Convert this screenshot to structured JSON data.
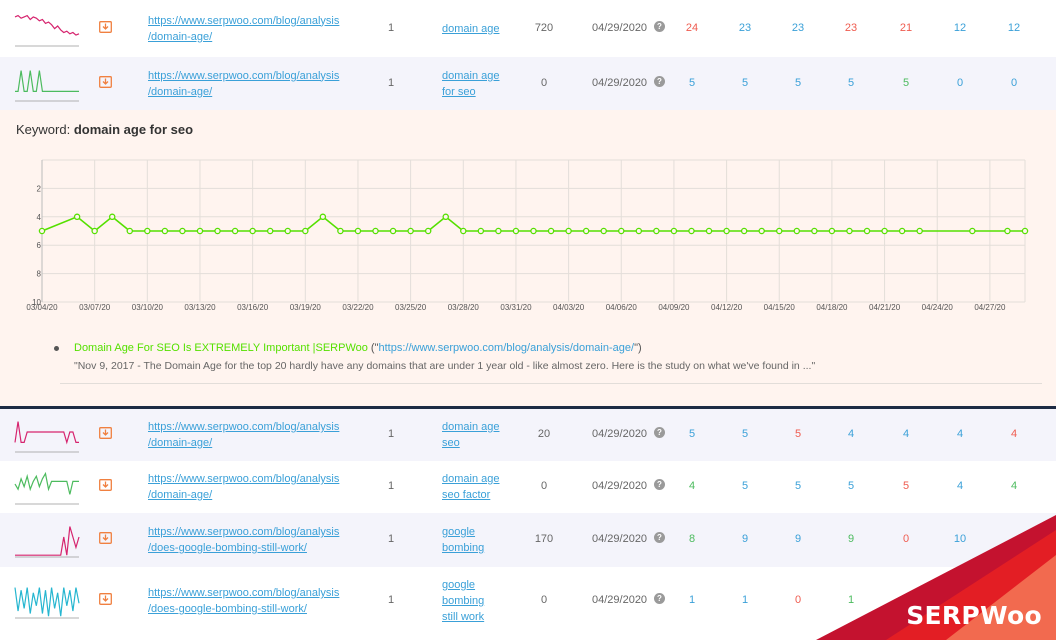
{
  "rows_top": [
    {
      "url": "https://www.serpwoo.com/blog/analysis/domain-age/",
      "url_lines": [
        "https://www.serpwoo.com/blog/analysis",
        "/domain-age/"
      ],
      "position": "1",
      "keyword_lines": [
        "domain age"
      ],
      "volume": "720",
      "date": "04/29/2020",
      "sparkline_color": "#d6246e",
      "sparkline": [
        3,
        2,
        4,
        3,
        2,
        5,
        3,
        4,
        6,
        5,
        8,
        7,
        9,
        12,
        10,
        13,
        15,
        14,
        16,
        15,
        17,
        16
      ],
      "ranks": [
        {
          "v": "24",
          "c": "red"
        },
        {
          "v": "23",
          "c": "blue"
        },
        {
          "v": "23",
          "c": "blue"
        },
        {
          "v": "23",
          "c": "red"
        },
        {
          "v": "21",
          "c": "red"
        },
        {
          "v": "12",
          "c": "blue"
        },
        {
          "v": "12",
          "c": "blue"
        }
      ]
    },
    {
      "url": "https://www.serpwoo.com/blog/analysis/domain-age/",
      "url_lines": [
        "https://www.serpwoo.com/blog/analysis",
        "/domain-age/"
      ],
      "position": "1",
      "keyword_lines": [
        "domain age",
        "for seo"
      ],
      "volume": "0",
      "date": "04/29/2020",
      "sparkline_color": "#4cbb5e",
      "sparkline": [
        18,
        18,
        2,
        18,
        18,
        2,
        18,
        18,
        2,
        18,
        18,
        18,
        18,
        18,
        18,
        18,
        18,
        18,
        18,
        18,
        18,
        18
      ],
      "ranks": [
        {
          "v": "5",
          "c": "blue"
        },
        {
          "v": "5",
          "c": "blue"
        },
        {
          "v": "5",
          "c": "blue"
        },
        {
          "v": "5",
          "c": "blue"
        },
        {
          "v": "5",
          "c": "green"
        },
        {
          "v": "0",
          "c": "blue"
        },
        {
          "v": "0",
          "c": "blue"
        }
      ]
    }
  ],
  "detail": {
    "keyword_prefix": "Keyword:",
    "keyword": "domain age for seo",
    "result_title": "Domain Age For SEO Is EXTREMELY Important |SERPWoo",
    "result_url_open": " (\"",
    "result_url": "https://www.serpwoo.com/blog/analysis/domain-age/",
    "result_url_close": "\")",
    "result_snippet": "\"Nov 9, 2017 - The Domain Age for the top 20 hardly have any domains that are under 1 year old - like almost zero. Here is the study on what we've found in ...\""
  },
  "chart_data": {
    "type": "line",
    "x": [
      "03/04/20",
      "03/05/20",
      "03/06/20",
      "03/07/20",
      "03/08/20",
      "03/09/20",
      "03/10/20",
      "03/11/20",
      "03/12/20",
      "03/13/20",
      "03/14/20",
      "03/15/20",
      "03/16/20",
      "03/17/20",
      "03/18/20",
      "03/19/20",
      "03/20/20",
      "03/21/20",
      "03/22/20",
      "03/23/20",
      "03/24/20",
      "03/25/20",
      "03/26/20",
      "03/27/20",
      "03/28/20",
      "03/29/20",
      "03/30/20",
      "03/31/20",
      "04/01/20",
      "04/02/20",
      "04/03/20",
      "04/04/20",
      "04/05/20",
      "04/06/20",
      "04/07/20",
      "04/08/20",
      "04/09/20",
      "04/10/20",
      "04/11/20",
      "04/12/20",
      "04/13/20",
      "04/14/20",
      "04/15/20",
      "04/16/20",
      "04/17/20",
      "04/18/20",
      "04/19/20",
      "04/20/20",
      "04/21/20",
      "04/22/20",
      "04/23/20",
      "04/24/20",
      "04/25/20",
      "04/26/20",
      "04/27/20",
      "04/28/20",
      "04/29/20"
    ],
    "series": [
      {
        "color": "#55e000",
        "values": [
          5,
          null,
          4,
          5,
          4,
          5,
          5,
          5,
          5,
          5,
          5,
          5,
          5,
          5,
          5,
          5,
          4,
          5,
          5,
          5,
          5,
          5,
          5,
          4,
          5,
          5,
          5,
          5,
          5,
          5,
          5,
          5,
          5,
          5,
          5,
          5,
          5,
          5,
          5,
          5,
          5,
          5,
          5,
          5,
          5,
          5,
          5,
          5,
          5,
          5,
          5,
          null,
          null,
          5,
          null,
          5,
          5
        ]
      }
    ],
    "x_tick_labels": [
      "03/04/20",
      "03/07/20",
      "03/10/20",
      "03/13/20",
      "03/16/20",
      "03/19/20",
      "03/22/20",
      "03/25/20",
      "03/28/20",
      "03/31/20",
      "04/03/20",
      "04/06/20",
      "04/09/20",
      "04/12/20",
      "04/15/20",
      "04/18/20",
      "04/21/20",
      "04/24/20",
      "04/27/20"
    ],
    "y_tick_labels": [
      "2",
      "4",
      "6",
      "8",
      "10"
    ],
    "ylim": [
      10,
      0
    ],
    "y_reversed": true,
    "grid": true
  },
  "rows_bottom": [
    {
      "url_lines": [
        "https://www.serpwoo.com/blog/analysis",
        "/domain-age/"
      ],
      "position": "1",
      "keyword_lines": [
        "domain age",
        "seo"
      ],
      "volume": "20",
      "date": "04/29/2020",
      "sparkline_color": "#d6246e",
      "sparkline": [
        18,
        2,
        18,
        18,
        10,
        10,
        10,
        10,
        10,
        10,
        10,
        10,
        10,
        10,
        10,
        10,
        10,
        18,
        10,
        10,
        18,
        18
      ],
      "ranks": [
        {
          "v": "5",
          "c": "blue"
        },
        {
          "v": "5",
          "c": "blue"
        },
        {
          "v": "5",
          "c": "red"
        },
        {
          "v": "4",
          "c": "blue"
        },
        {
          "v": "4",
          "c": "blue"
        },
        {
          "v": "4",
          "c": "blue"
        },
        {
          "v": "4",
          "c": "red"
        }
      ]
    },
    {
      "url_lines": [
        "https://www.serpwoo.com/blog/analysis",
        "/domain-age/"
      ],
      "position": "1",
      "keyword_lines": [
        "domain age",
        "seo factor"
      ],
      "volume": "0",
      "date": "04/29/2020",
      "sparkline_color": "#4cbb5e",
      "sparkline": [
        10,
        14,
        6,
        12,
        4,
        14,
        8,
        4,
        12,
        6,
        2,
        14,
        8,
        8,
        8,
        8,
        8,
        8,
        18,
        8,
        8,
        8
      ],
      "ranks": [
        {
          "v": "4",
          "c": "green"
        },
        {
          "v": "5",
          "c": "blue"
        },
        {
          "v": "5",
          "c": "blue"
        },
        {
          "v": "5",
          "c": "blue"
        },
        {
          "v": "5",
          "c": "red"
        },
        {
          "v": "4",
          "c": "blue"
        },
        {
          "v": "4",
          "c": "green"
        }
      ]
    },
    {
      "url_lines": [
        "https://www.serpwoo.com/blog/analysis",
        "/does-google-bombing-still-work/"
      ],
      "position": "1",
      "keyword_lines": [
        "google",
        "bombing"
      ],
      "volume": "170",
      "date": "04/29/2020",
      "sparkline_color": "#d6246e",
      "sparkline": [
        24,
        24,
        24,
        24,
        24,
        24,
        24,
        24,
        24,
        24,
        24,
        24,
        24,
        24,
        24,
        24,
        10,
        24,
        2,
        10,
        18,
        10
      ],
      "ranks": [
        {
          "v": "8",
          "c": "green"
        },
        {
          "v": "9",
          "c": "blue"
        },
        {
          "v": "9",
          "c": "blue"
        },
        {
          "v": "9",
          "c": "green"
        },
        {
          "v": "0",
          "c": "red"
        },
        {
          "v": "10",
          "c": "blue"
        }
      ]
    },
    {
      "url_lines": [
        "https://www.serpwoo.com/blog/analysis",
        "/does-google-bombing-still-work/"
      ],
      "position": "1",
      "keyword_lines": [
        "google",
        "bombing",
        "still work"
      ],
      "volume": "0",
      "date": "04/29/2020",
      "sparkline_color": "#26b6d0",
      "sparkline": [
        2,
        20,
        4,
        18,
        2,
        22,
        6,
        16,
        2,
        22,
        4,
        24,
        2,
        18,
        6,
        24,
        2,
        16,
        4,
        20,
        2,
        14
      ],
      "ranks": [
        {
          "v": "1",
          "c": "blue"
        },
        {
          "v": "1",
          "c": "blue"
        },
        {
          "v": "0",
          "c": "red"
        },
        {
          "v": "1",
          "c": "green"
        }
      ]
    }
  ],
  "brand": {
    "name": "SERPWoo",
    "colors": [
      "#c4122f",
      "#e31e24",
      "#f26a4f"
    ]
  },
  "help_glyph": "?"
}
